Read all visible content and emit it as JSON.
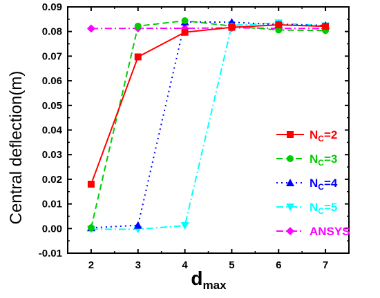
{
  "chart_data": {
    "type": "line",
    "xlabel": "d",
    "xlabel_sub": "max",
    "ylabel": "Central deflection(m)",
    "xlim": [
      1.5,
      7.5
    ],
    "ylim": [
      -0.01,
      0.09
    ],
    "x_ticks": [
      2,
      3,
      4,
      5,
      6,
      7
    ],
    "y_ticks": [
      -0.01,
      0.0,
      0.01,
      0.02,
      0.03,
      0.04,
      0.05,
      0.06,
      0.07,
      0.08,
      0.09
    ],
    "y_tick_labels": [
      "-0.01",
      "0.00",
      "0.01",
      "0.02",
      "0.03",
      "0.04",
      "0.05",
      "0.06",
      "0.07",
      "0.08",
      "0.09"
    ],
    "x_tick_labels": [
      "2",
      "3",
      "4",
      "5",
      "6",
      "7"
    ],
    "legend_position": "right",
    "grid": false,
    "x": [
      2,
      3,
      4,
      5,
      6,
      7
    ],
    "series": [
      {
        "name": "N",
        "name_sub": "C",
        "name_suffix": "=2",
        "values": [
          0.018,
          0.0697,
          0.0797,
          0.0817,
          0.0827,
          0.0821
        ],
        "color": "#ff0000",
        "marker": "square",
        "dash": "solid"
      },
      {
        "name": "N",
        "name_sub": "C",
        "name_suffix": "=3",
        "values": [
          0.0003,
          0.0822,
          0.0844,
          0.0822,
          0.0806,
          0.0804
        ],
        "color": "#00cc00",
        "marker": "circle",
        "dash": "dash"
      },
      {
        "name": "N",
        "name_sub": "C",
        "name_suffix": "=4",
        "values": [
          0.0003,
          0.0013,
          0.0839,
          0.0838,
          0.0828,
          0.0825
        ],
        "color": "#0000ff",
        "marker": "triangle-up",
        "dash": "dot"
      },
      {
        "name": "N",
        "name_sub": "C",
        "name_suffix": "=5",
        "values": [
          -0.0003,
          -0.0003,
          0.0012,
          0.0825,
          0.0835,
          0.0823
        ],
        "color": "#00ffff",
        "marker": "triangle-down",
        "dash": "dashdot"
      },
      {
        "name": "ANSYS",
        "values": [
          0.0812,
          0.0813,
          0.0813,
          0.0815,
          0.0813,
          0.0812
        ],
        "color": "#ff00ff",
        "marker": "diamond",
        "dash": "dashdot"
      }
    ]
  }
}
